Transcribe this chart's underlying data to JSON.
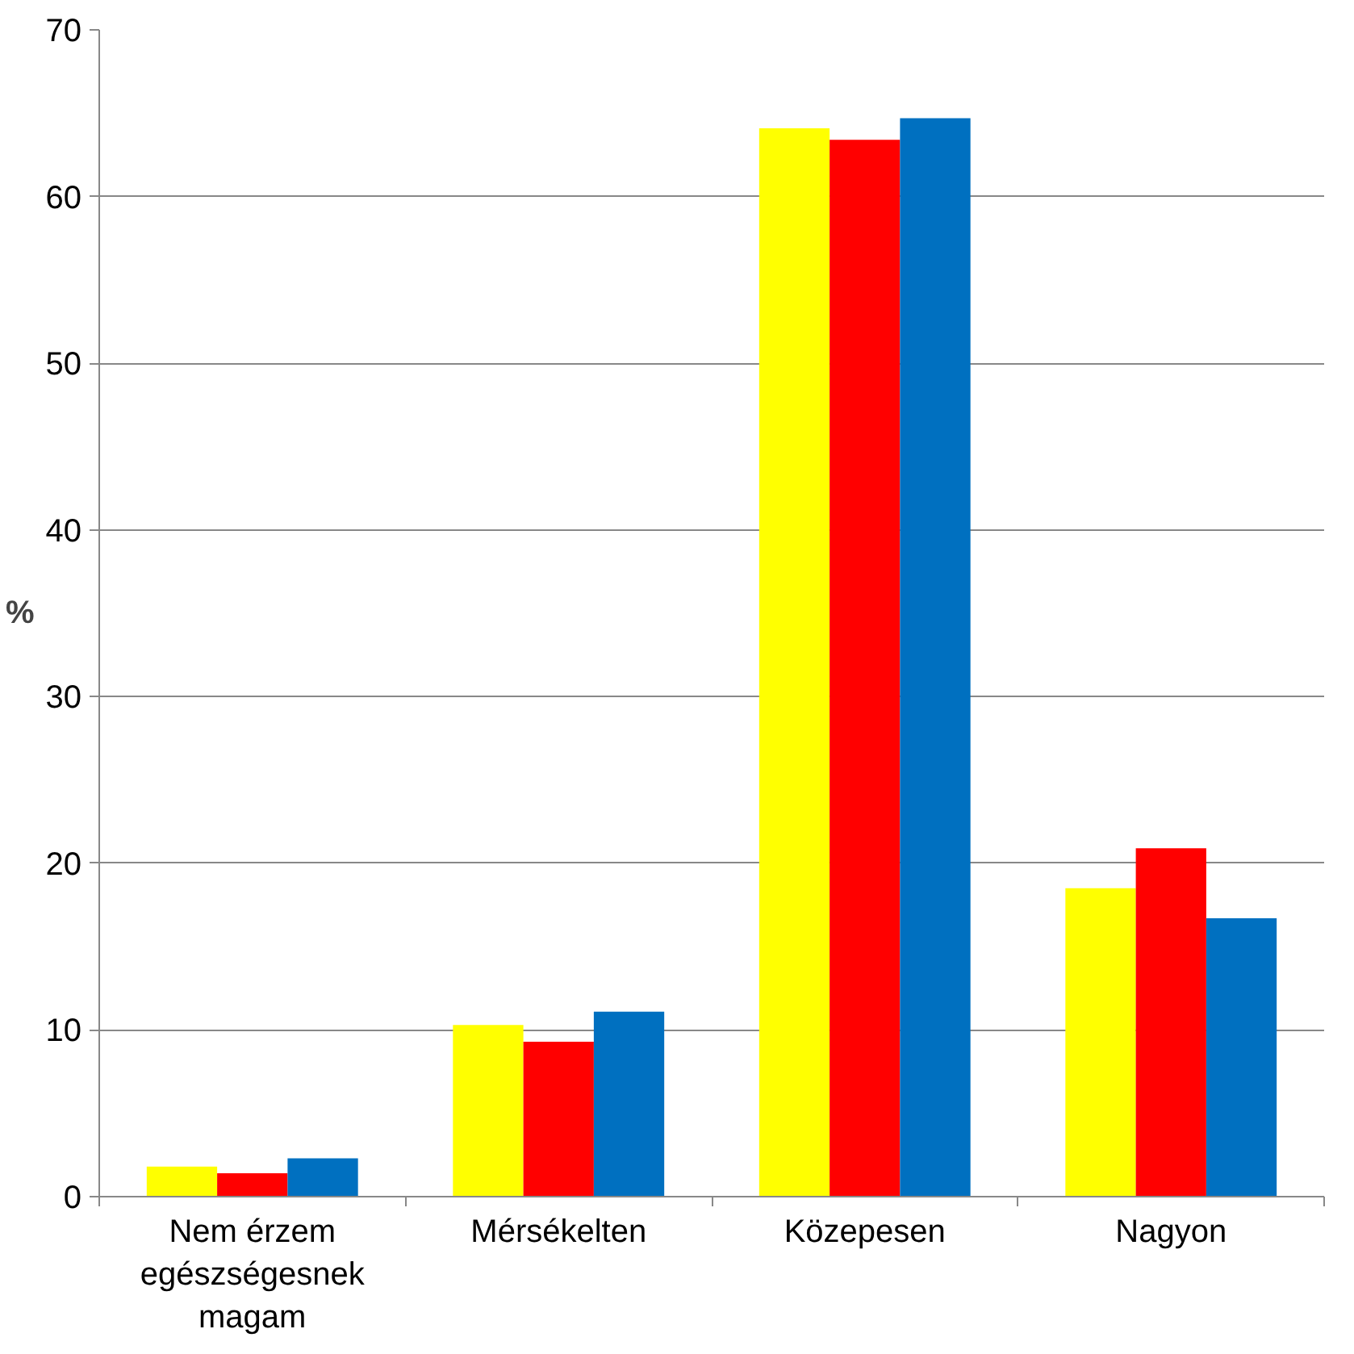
{
  "chart_data": {
    "type": "bar",
    "ylabel": "%",
    "categories": [
      "Nem érzem egészségesnek magam",
      "Mérsékelten",
      "Közepesen",
      "Nagyon"
    ],
    "series": [
      {
        "color": "#ffff00",
        "values": [
          1.8,
          10.3,
          64.1,
          18.5
        ]
      },
      {
        "color": "#ff0000",
        "values": [
          1.4,
          9.3,
          63.4,
          20.9
        ]
      },
      {
        "color": "#0070c0",
        "values": [
          2.3,
          11.1,
          64.7,
          16.7
        ]
      }
    ],
    "ylim": [
      0,
      70
    ],
    "yticks": [
      0,
      10,
      20,
      30,
      40,
      50,
      60,
      70
    ],
    "grid": "y"
  }
}
